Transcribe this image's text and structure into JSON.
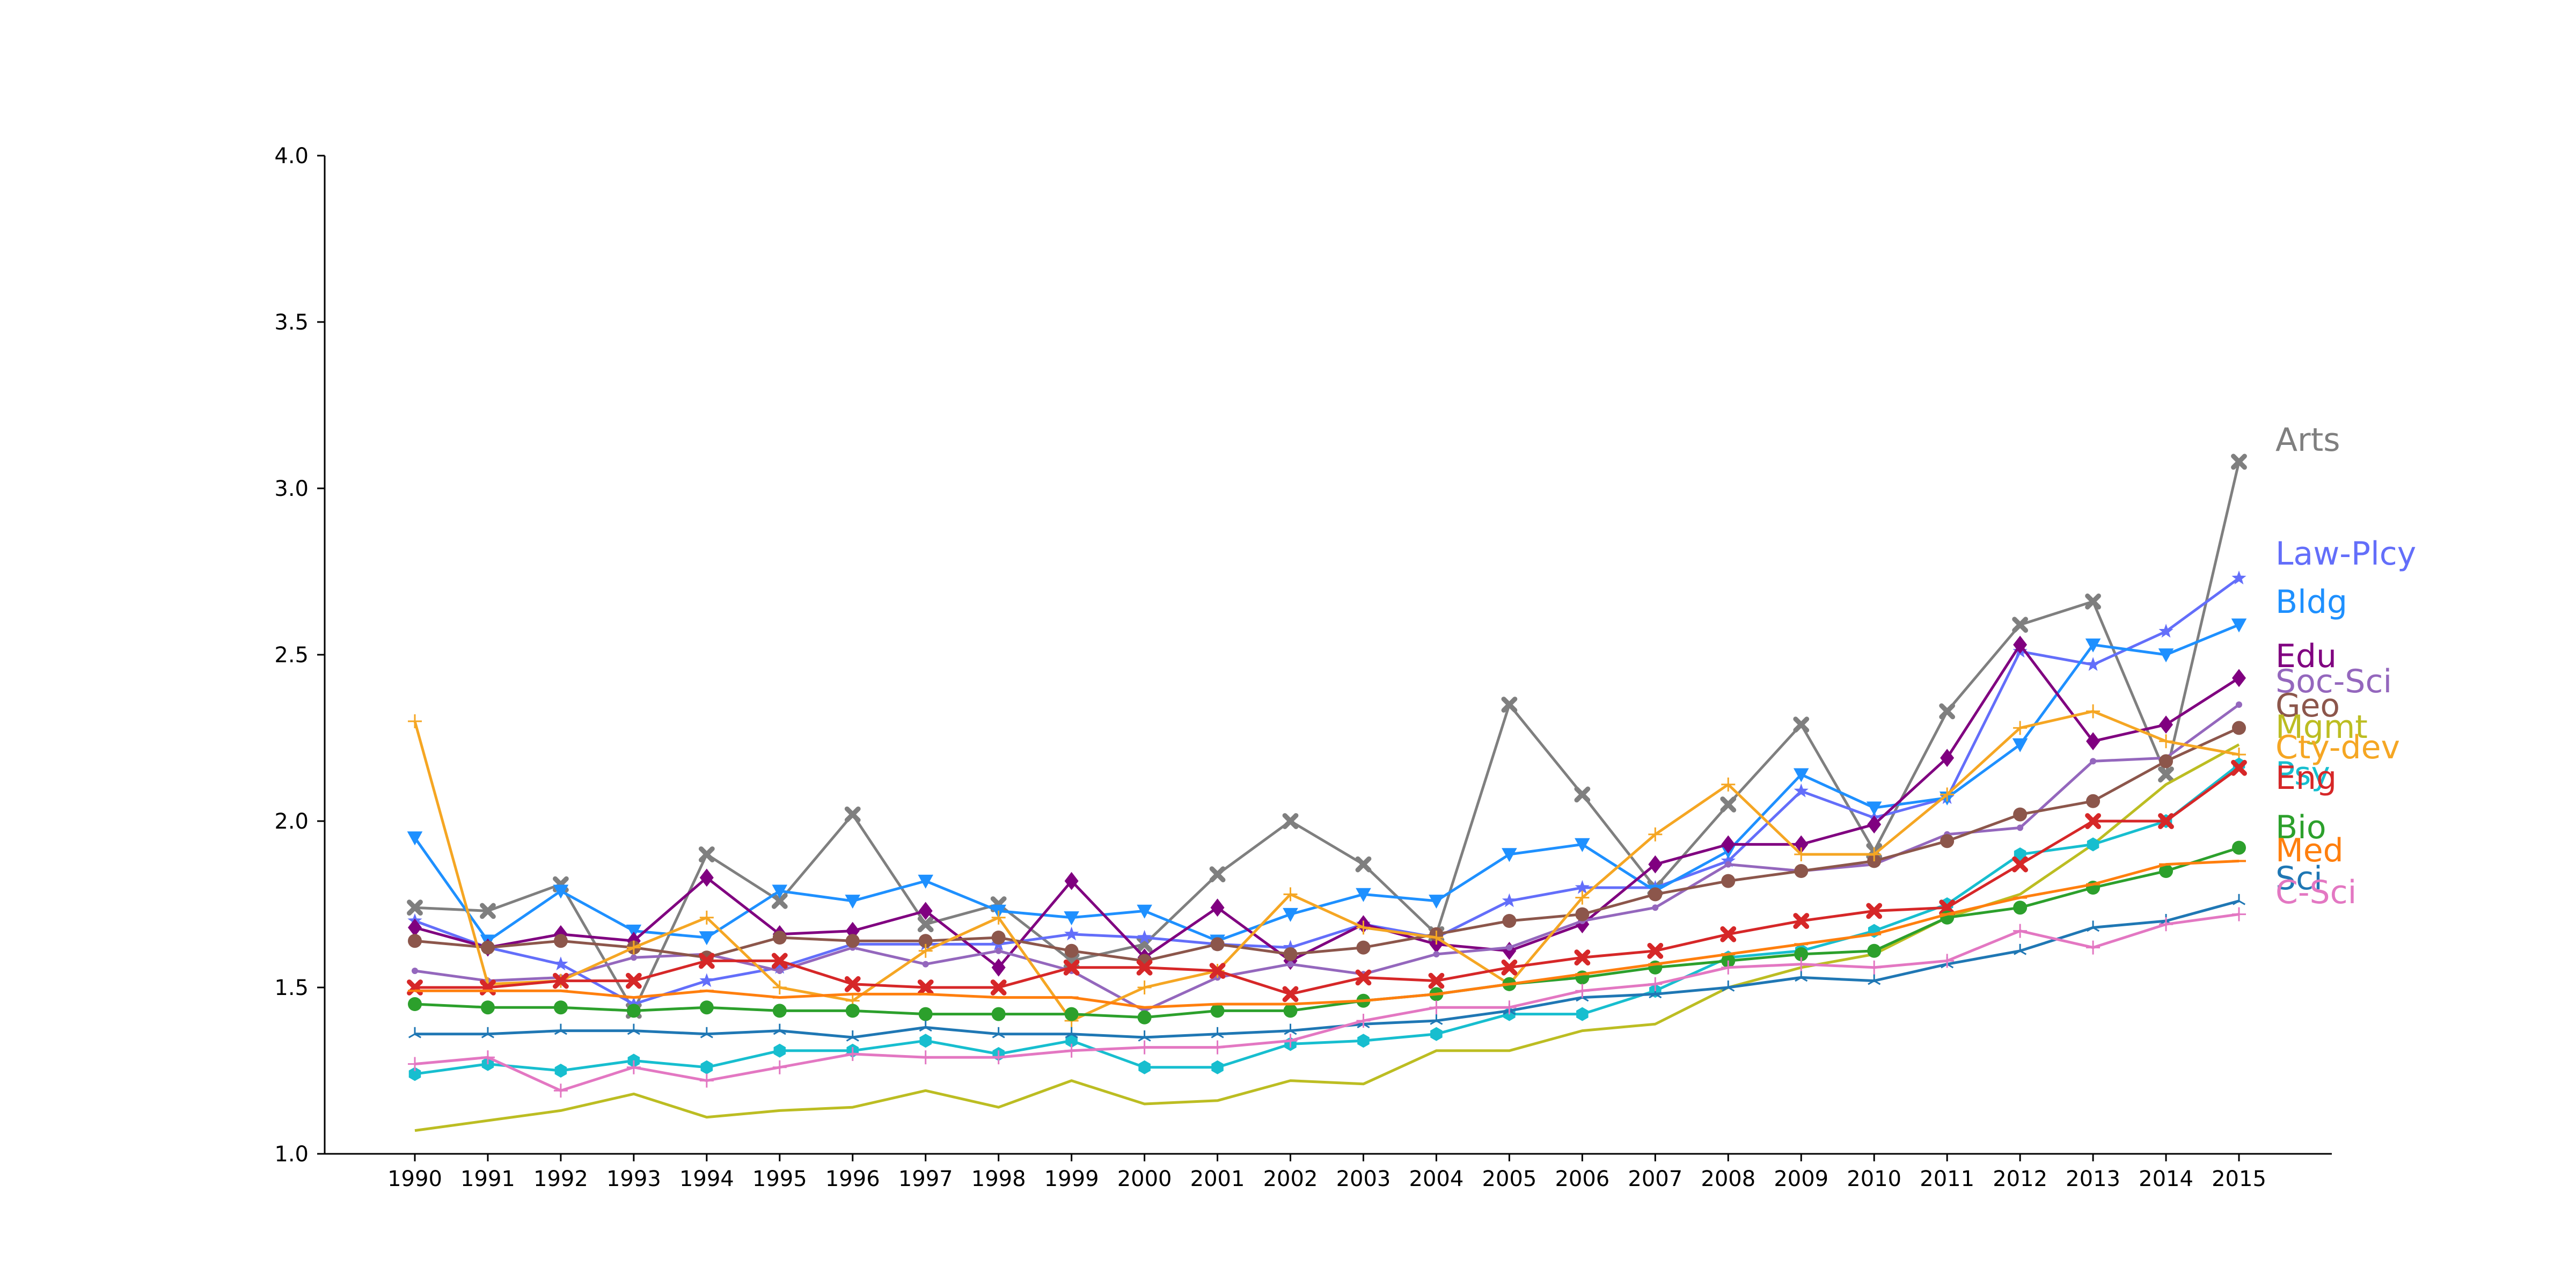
{
  "chart_data": {
    "type": "line",
    "title": "",
    "xlabel": "",
    "ylabel": "",
    "x": [
      1990,
      1991,
      1992,
      1993,
      1994,
      1995,
      1996,
      1997,
      1998,
      1999,
      2000,
      2001,
      2002,
      2003,
      2004,
      2005,
      2006,
      2007,
      2008,
      2009,
      2010,
      2011,
      2012,
      2013,
      2014,
      2015
    ],
    "ylim": [
      1.0,
      4.0
    ],
    "yticks": [
      "1.0",
      "1.5",
      "2.0",
      "2.5",
      "3.0",
      "3.5",
      "4.0"
    ],
    "grid": false,
    "legend": "labels at line ends, right",
    "series": [
      {
        "name": "Arts",
        "color": "#7f7f7f",
        "marker": "x",
        "values": [
          1.74,
          1.73,
          1.81,
          1.43,
          1.9,
          1.76,
          2.02,
          1.69,
          1.75,
          1.58,
          1.63,
          1.84,
          2.0,
          1.87,
          1.66,
          2.35,
          2.08,
          1.8,
          2.05,
          2.29,
          1.91,
          2.33,
          2.59,
          2.66,
          2.14,
          3.08
        ]
      },
      {
        "name": "Law-Plcy",
        "color": "#636efa",
        "marker": "star",
        "values": [
          1.7,
          1.62,
          1.57,
          1.45,
          1.52,
          1.56,
          1.63,
          1.63,
          1.63,
          1.66,
          1.65,
          1.63,
          1.62,
          1.69,
          1.65,
          1.76,
          1.8,
          1.8,
          1.88,
          2.09,
          2.01,
          2.07,
          2.51,
          2.47,
          2.57,
          2.73
        ]
      },
      {
        "name": "Bldg",
        "color": "#1e90ff",
        "marker": "triangle-down",
        "values": [
          1.95,
          1.64,
          1.79,
          1.67,
          1.65,
          1.79,
          1.76,
          1.82,
          1.73,
          1.71,
          1.73,
          1.64,
          1.72,
          1.78,
          1.76,
          1.9,
          1.93,
          1.79,
          1.91,
          2.14,
          2.04,
          2.07,
          2.23,
          2.53,
          2.5,
          2.59
        ]
      },
      {
        "name": "Edu",
        "color": "#800080",
        "marker": "diamond",
        "values": [
          1.68,
          1.62,
          1.66,
          1.64,
          1.83,
          1.66,
          1.67,
          1.73,
          1.56,
          1.82,
          1.59,
          1.74,
          1.58,
          1.69,
          1.63,
          1.61,
          1.69,
          1.87,
          1.93,
          1.93,
          1.99,
          2.19,
          2.53,
          2.24,
          2.29,
          2.43
        ]
      },
      {
        "name": "Soc-Sci",
        "color": "#9467bd",
        "marker": "point",
        "values": [
          1.55,
          1.52,
          1.53,
          1.59,
          1.6,
          1.55,
          1.62,
          1.57,
          1.61,
          1.55,
          1.43,
          1.53,
          1.57,
          1.54,
          1.6,
          1.62,
          1.7,
          1.74,
          1.87,
          1.85,
          1.87,
          1.96,
          1.98,
          2.18,
          2.19,
          2.35
        ]
      },
      {
        "name": "Geo",
        "color": "#8c564b",
        "marker": "circle",
        "values": [
          1.64,
          1.62,
          1.64,
          1.62,
          1.59,
          1.65,
          1.64,
          1.64,
          1.65,
          1.61,
          1.58,
          1.63,
          1.6,
          1.62,
          1.66,
          1.7,
          1.72,
          1.78,
          1.82,
          1.85,
          1.88,
          1.94,
          2.02,
          2.06,
          2.18,
          2.28
        ]
      },
      {
        "name": "Mgmt",
        "color": "#bcbd22",
        "marker": "none",
        "values": [
          1.07,
          1.1,
          1.13,
          1.18,
          1.11,
          1.13,
          1.14,
          1.19,
          1.14,
          1.22,
          1.15,
          1.16,
          1.22,
          1.21,
          1.31,
          1.31,
          1.37,
          1.39,
          1.5,
          1.56,
          1.6,
          1.71,
          1.78,
          1.93,
          2.11,
          2.23
        ]
      },
      {
        "name": "Cty-dev",
        "color": "#f5a623",
        "marker": "plus",
        "values": [
          2.3,
          1.51,
          1.52,
          1.62,
          1.71,
          1.5,
          1.46,
          1.61,
          1.71,
          1.4,
          1.5,
          1.55,
          1.78,
          1.68,
          1.65,
          1.51,
          1.77,
          1.96,
          2.11,
          1.9,
          1.9,
          2.08,
          2.28,
          2.33,
          2.24,
          2.2
        ]
      },
      {
        "name": "Psy",
        "color": "#17becf",
        "marker": "hexagon",
        "values": [
          1.24,
          1.27,
          1.25,
          1.28,
          1.26,
          1.31,
          1.31,
          1.34,
          1.3,
          1.34,
          1.26,
          1.26,
          1.33,
          1.34,
          1.36,
          1.42,
          1.42,
          1.49,
          1.59,
          1.61,
          1.67,
          1.75,
          1.9,
          1.93,
          2.0,
          2.17
        ]
      },
      {
        "name": "Eng",
        "color": "#d62728",
        "marker": "x",
        "values": [
          1.5,
          1.5,
          1.52,
          1.52,
          1.58,
          1.58,
          1.51,
          1.5,
          1.5,
          1.56,
          1.56,
          1.55,
          1.48,
          1.53,
          1.52,
          1.56,
          1.59,
          1.61,
          1.66,
          1.7,
          1.73,
          1.74,
          1.87,
          2.0,
          2.0,
          2.16
        ]
      },
      {
        "name": "Bio",
        "color": "#2ca02c",
        "marker": "circle",
        "values": [
          1.45,
          1.44,
          1.44,
          1.43,
          1.44,
          1.43,
          1.43,
          1.42,
          1.42,
          1.42,
          1.41,
          1.43,
          1.43,
          1.46,
          1.48,
          1.51,
          1.53,
          1.56,
          1.58,
          1.6,
          1.61,
          1.71,
          1.74,
          1.8,
          1.85,
          1.92
        ]
      },
      {
        "name": "Med",
        "color": "#ff7f0e",
        "marker": "hline",
        "values": [
          1.49,
          1.49,
          1.49,
          1.47,
          1.49,
          1.47,
          1.48,
          1.48,
          1.47,
          1.47,
          1.44,
          1.45,
          1.45,
          1.46,
          1.48,
          1.51,
          1.54,
          1.57,
          1.6,
          1.63,
          1.66,
          1.72,
          1.77,
          1.81,
          1.87,
          1.88
        ]
      },
      {
        "name": "Sci",
        "color": "#1f77b4",
        "marker": "tri",
        "values": [
          1.36,
          1.36,
          1.37,
          1.37,
          1.36,
          1.37,
          1.35,
          1.38,
          1.36,
          1.36,
          1.35,
          1.36,
          1.37,
          1.39,
          1.4,
          1.43,
          1.47,
          1.48,
          1.5,
          1.53,
          1.52,
          1.57,
          1.61,
          1.68,
          1.7,
          1.76
        ]
      },
      {
        "name": "C-Sci",
        "color": "#e377c2",
        "marker": "plus",
        "values": [
          1.27,
          1.29,
          1.19,
          1.26,
          1.22,
          1.26,
          1.3,
          1.29,
          1.29,
          1.31,
          1.32,
          1.32,
          1.34,
          1.4,
          1.44,
          1.44,
          1.49,
          1.51,
          1.56,
          1.57,
          1.56,
          1.58,
          1.67,
          1.62,
          1.69,
          1.72
        ]
      }
    ]
  }
}
